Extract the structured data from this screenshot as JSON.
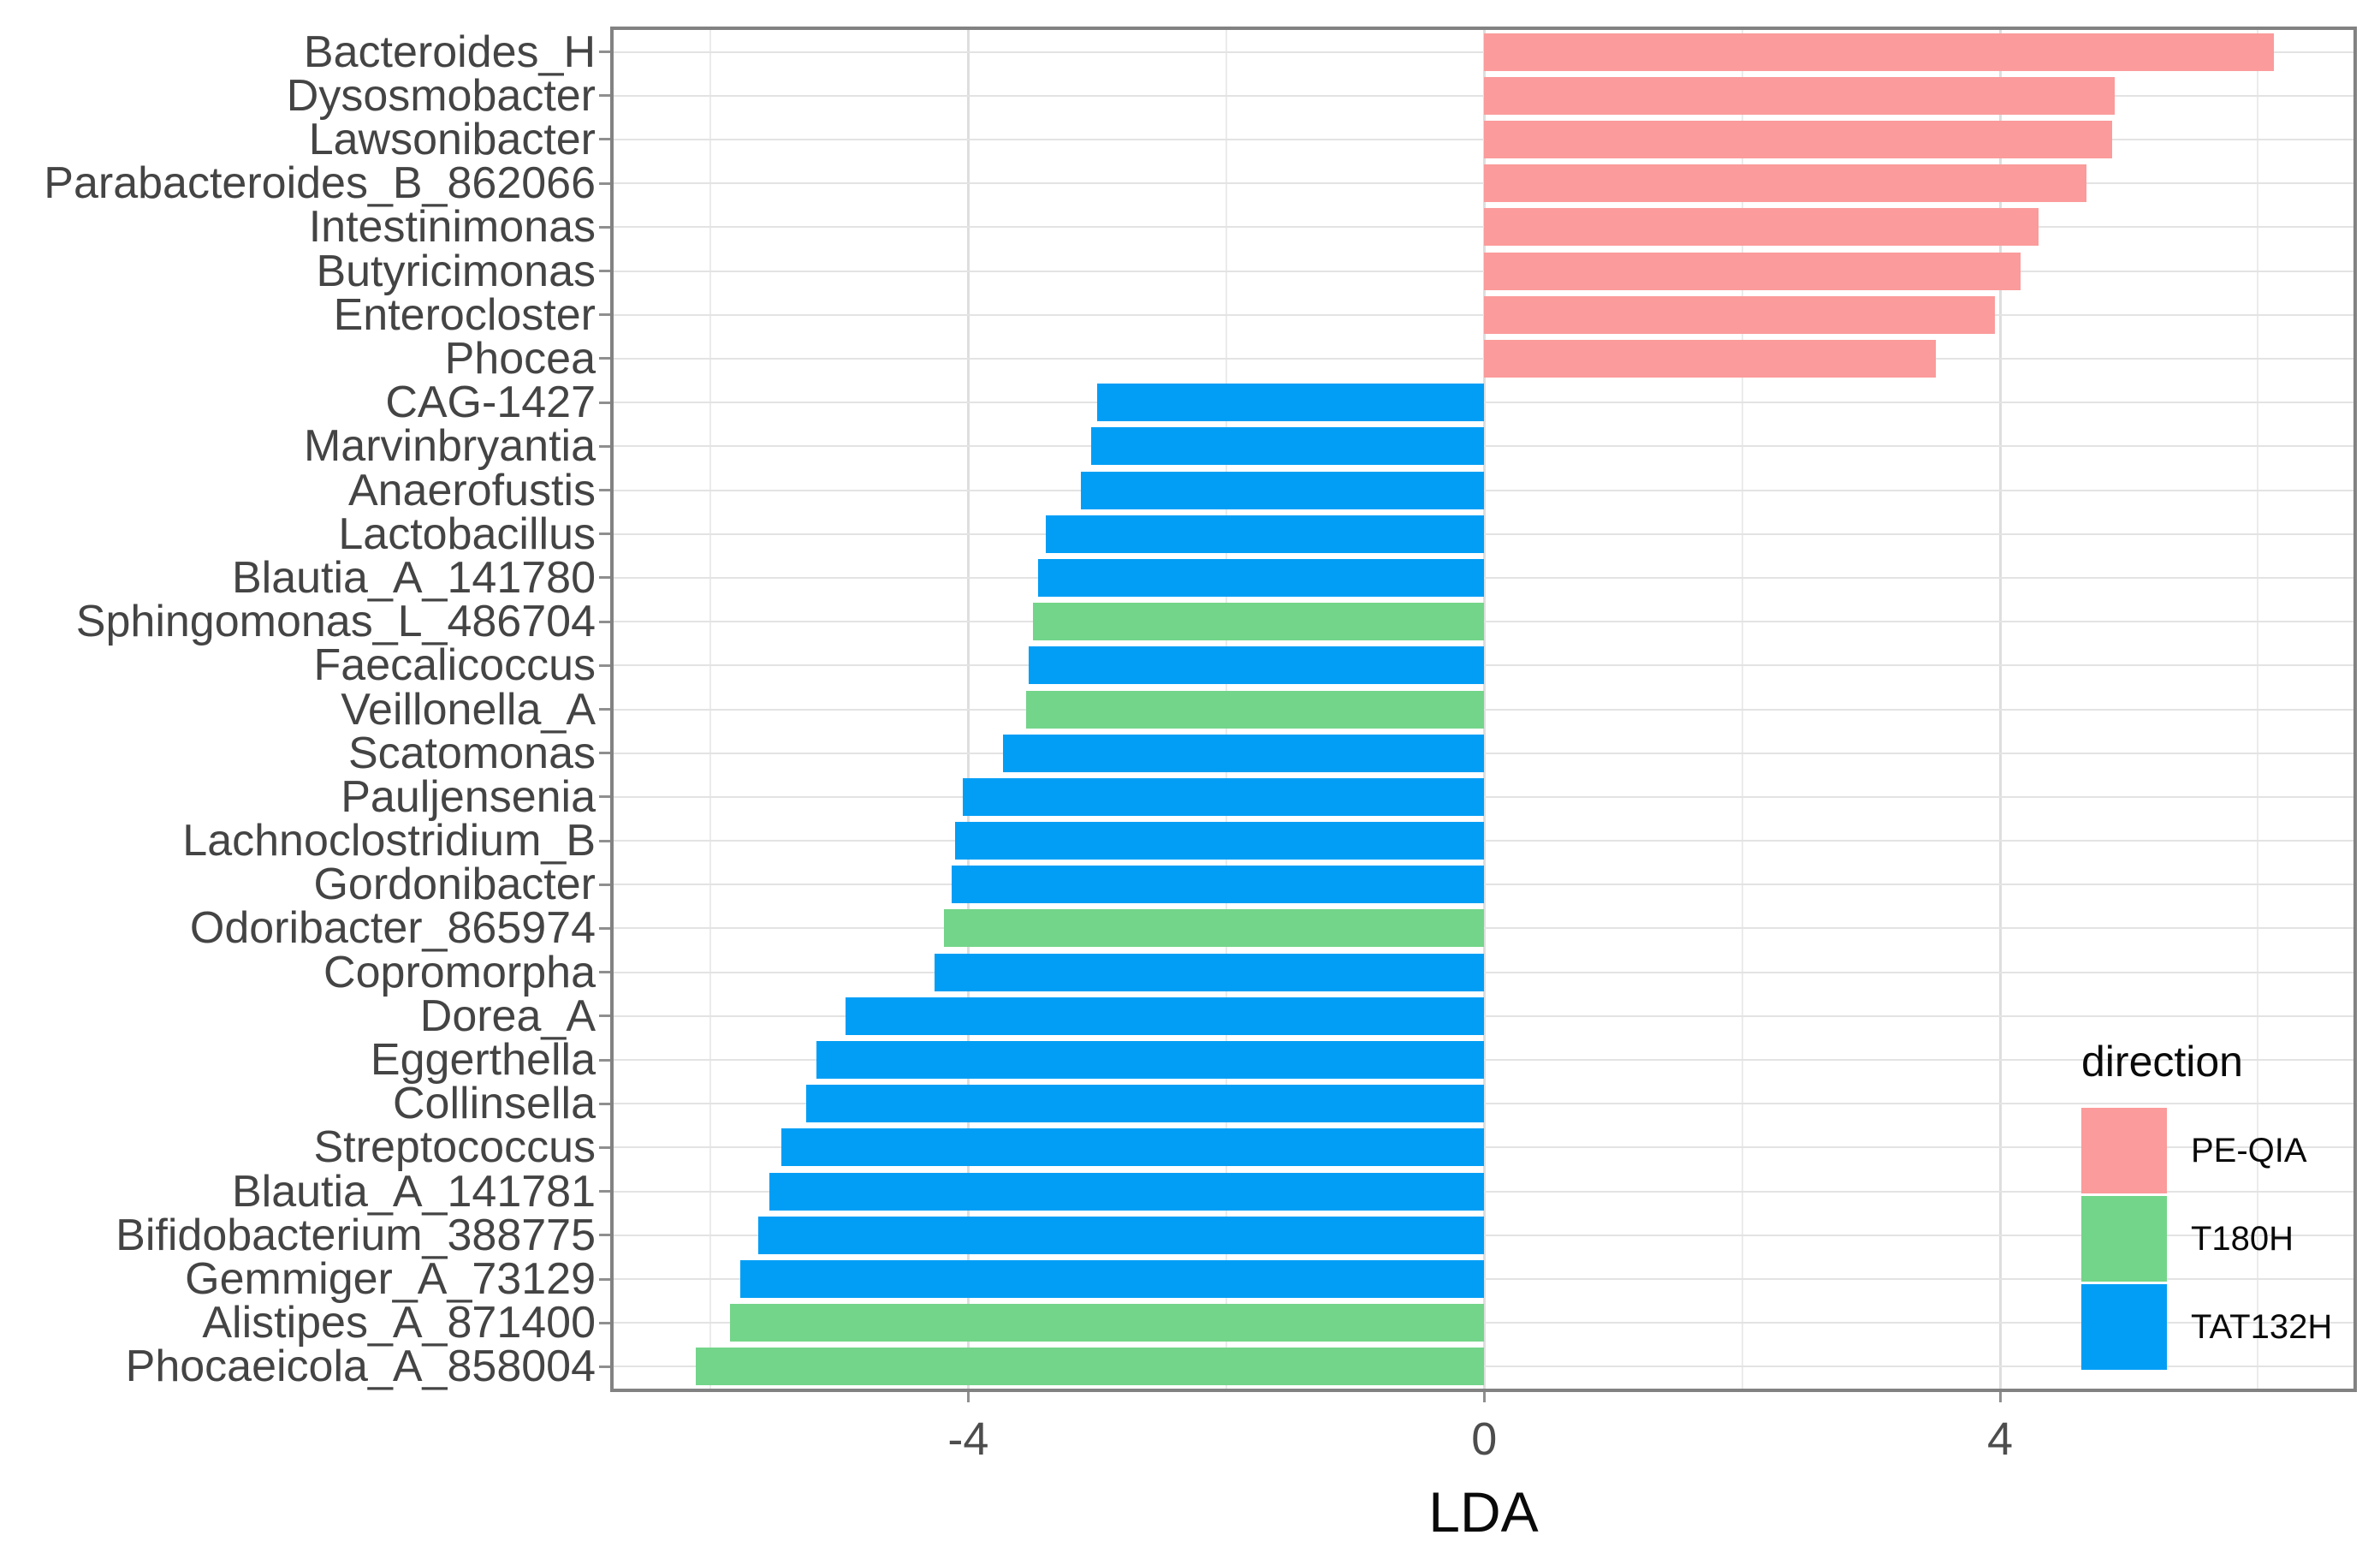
{
  "chart_data": {
    "type": "bar",
    "orientation": "horizontal",
    "title": "",
    "xlabel": "LDA",
    "ylabel": "",
    "xlim": [
      -6.75,
      6.74
    ],
    "x_ticks": [
      {
        "label": "-4",
        "value": -4
      },
      {
        "label": "0",
        "value": 0
      },
      {
        "label": "4",
        "value": 4
      }
    ],
    "x_minor_gridlines": [
      -6,
      -2,
      2,
      6
    ],
    "grid": "major vertical + minor vertical + one horizontal major gridline per category",
    "legend": {
      "title": "direction",
      "position": "inside bottom-right of panel",
      "entries": [
        {
          "label": "PE-QIA",
          "color": "#FB9B9B"
        },
        {
          "label": "T180H",
          "color": "#73D589"
        },
        {
          "label": "TAT132H",
          "color": "#029EF5"
        }
      ]
    },
    "bars": [
      {
        "taxon": "Bacteroides_H",
        "lda": 6.12,
        "direction": "PE-QIA"
      },
      {
        "taxon": "Dysosmobacter",
        "lda": 4.89,
        "direction": "PE-QIA"
      },
      {
        "taxon": "Lawsonibacter",
        "lda": 4.87,
        "direction": "PE-QIA"
      },
      {
        "taxon": "Parabacteroides_B_862066",
        "lda": 4.67,
        "direction": "PE-QIA"
      },
      {
        "taxon": "Intestinimonas",
        "lda": 4.3,
        "direction": "PE-QIA"
      },
      {
        "taxon": "Butyricimonas",
        "lda": 4.16,
        "direction": "PE-QIA"
      },
      {
        "taxon": "Enterocloster",
        "lda": 3.96,
        "direction": "PE-QIA"
      },
      {
        "taxon": "Phocea",
        "lda": 3.5,
        "direction": "PE-QIA"
      },
      {
        "taxon": "CAG-1427",
        "lda": -3.0,
        "direction": "TAT132H"
      },
      {
        "taxon": "Marvinbryantia",
        "lda": -3.05,
        "direction": "TAT132H"
      },
      {
        "taxon": "Anaerofustis",
        "lda": -3.13,
        "direction": "TAT132H"
      },
      {
        "taxon": "Lactobacillus",
        "lda": -3.4,
        "direction": "TAT132H"
      },
      {
        "taxon": "Blautia_A_141780",
        "lda": -3.46,
        "direction": "TAT132H"
      },
      {
        "taxon": "Sphingomonas_L_486704",
        "lda": -3.5,
        "direction": "T180H"
      },
      {
        "taxon": "Faecalicoccus",
        "lda": -3.53,
        "direction": "TAT132H"
      },
      {
        "taxon": "Veillonella_A",
        "lda": -3.55,
        "direction": "T180H"
      },
      {
        "taxon": "Scatomonas",
        "lda": -3.73,
        "direction": "TAT132H"
      },
      {
        "taxon": "Pauljensenia",
        "lda": -4.04,
        "direction": "TAT132H"
      },
      {
        "taxon": "Lachnoclostridium_B",
        "lda": -4.1,
        "direction": "TAT132H"
      },
      {
        "taxon": "Gordonibacter",
        "lda": -4.13,
        "direction": "TAT132H"
      },
      {
        "taxon": "Odoribacter_865974",
        "lda": -4.19,
        "direction": "T180H"
      },
      {
        "taxon": "Copromorpha",
        "lda": -4.26,
        "direction": "TAT132H"
      },
      {
        "taxon": "Dorea_A",
        "lda": -4.95,
        "direction": "TAT132H"
      },
      {
        "taxon": "Eggerthella",
        "lda": -5.18,
        "direction": "TAT132H"
      },
      {
        "taxon": "Collinsella",
        "lda": -5.26,
        "direction": "TAT132H"
      },
      {
        "taxon": "Streptococcus",
        "lda": -5.45,
        "direction": "TAT132H"
      },
      {
        "taxon": "Blautia_A_141781",
        "lda": -5.54,
        "direction": "TAT132H"
      },
      {
        "taxon": "Bifidobacterium_388775",
        "lda": -5.63,
        "direction": "TAT132H"
      },
      {
        "taxon": "Gemmiger_A_73129",
        "lda": -5.77,
        "direction": "TAT132H"
      },
      {
        "taxon": "Alistipes_A_871400",
        "lda": -5.85,
        "direction": "T180H"
      },
      {
        "taxon": "Phocaeicola_A_858004",
        "lda": -6.11,
        "direction": "T180H"
      }
    ]
  }
}
